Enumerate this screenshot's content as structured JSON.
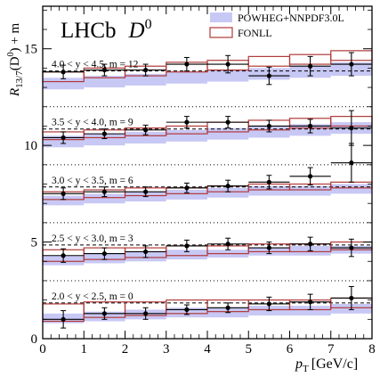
{
  "chart_data": {
    "type": "step",
    "experiment": "LHCb",
    "particle": "D",
    "particle_sup": "0",
    "xlabel": "p",
    "xlabel_sub": "T",
    "xlabel_unit": "[GeV/c]",
    "ylabel": "R",
    "ylabel_sub": "13/7",
    "ylabel_suffix": "(D",
    "ylabel_sup": "0",
    "ylabel_tail": ") + m",
    "xlim": [
      0,
      8
    ],
    "ylim": [
      0,
      17.2
    ],
    "xticks": [
      0,
      1,
      2,
      3,
      4,
      5,
      6,
      7,
      8
    ],
    "yticks": [
      0,
      5,
      10,
      15
    ],
    "legend": {
      "position": "top-right",
      "entries": [
        {
          "label": "POWHEG+NNPDF3.0L",
          "style": "band",
          "color": "#c8c8f5"
        },
        {
          "label": "FONLL",
          "style": "box",
          "color": "#b03a3a"
        }
      ]
    },
    "colors": {
      "data": "#000000",
      "fonll": "#b03a3a",
      "powheg": "#c8c8f5"
    },
    "x_bins": [
      0,
      1,
      2,
      3,
      4,
      5,
      6,
      7,
      8
    ],
    "x_points": [
      0.5,
      1.5,
      2.5,
      3.5,
      4.5,
      5.5,
      6.5,
      7.5
    ],
    "panels": [
      {
        "label": "2.0 < y < 2.5, m = 0",
        "m": 0,
        "ratio_line": 1.85,
        "points": [
          1.0,
          1.3,
          1.3,
          1.5,
          1.6,
          1.8,
          1.9,
          2.1
        ],
        "errors": [
          0.45,
          0.3,
          0.3,
          0.25,
          0.25,
          0.35,
          0.4,
          0.6
        ],
        "xerr": [
          0.5,
          0.5,
          0.5,
          0.5,
          0.5,
          0.5,
          0.5,
          0.5
        ],
        "fonll_lo": [
          0.9,
          1.1,
          1.2,
          1.3,
          1.4,
          1.5,
          1.5,
          1.6
        ],
        "fonll_hi": [
          1.8,
          1.9,
          1.9,
          2.0,
          2.0,
          2.0,
          2.0,
          2.1
        ],
        "powheg_lo": [
          0.8,
          0.9,
          1.0,
          1.1,
          1.1,
          1.2,
          1.2,
          1.3
        ],
        "powheg_hi": [
          1.3,
          1.4,
          1.5,
          1.6,
          1.6,
          1.7,
          1.7,
          1.8
        ]
      },
      {
        "label": "2.5 < y < 3.0, m = 3",
        "m": 3,
        "ratio_line": 4.85,
        "points": [
          4.3,
          4.4,
          4.5,
          4.8,
          4.9,
          4.7,
          4.9,
          4.7
        ],
        "errors": [
          0.35,
          0.3,
          0.3,
          0.3,
          0.3,
          0.3,
          0.35,
          0.45
        ],
        "xerr": [
          0.5,
          0.5,
          0.5,
          0.5,
          0.5,
          0.5,
          0.5,
          0.5
        ],
        "fonll_lo": [
          4.0,
          4.1,
          4.2,
          4.3,
          4.4,
          4.5,
          4.5,
          4.6
        ],
        "fonll_hi": [
          4.6,
          4.7,
          4.7,
          4.8,
          4.8,
          4.9,
          4.9,
          5.0
        ],
        "powheg_lo": [
          3.8,
          3.9,
          4.0,
          4.1,
          4.2,
          4.3,
          4.3,
          4.4
        ],
        "powheg_hi": [
          4.3,
          4.4,
          4.5,
          4.6,
          4.6,
          4.7,
          4.8,
          4.8
        ]
      },
      {
        "label": "3.0 < y < 3.5, m = 6",
        "m": 6,
        "ratio_line": 7.85,
        "points": [
          7.5,
          7.6,
          7.6,
          7.8,
          7.9,
          8.1,
          8.4,
          9.1
        ],
        "errors": [
          0.3,
          0.25,
          0.25,
          0.25,
          0.3,
          0.35,
          0.45,
          1.0
        ],
        "xerr": [
          0.5,
          0.5,
          0.5,
          0.5,
          0.5,
          0.5,
          0.5,
          0.5
        ],
        "fonll_lo": [
          7.2,
          7.3,
          7.4,
          7.5,
          7.6,
          7.7,
          7.7,
          7.8
        ],
        "fonll_hi": [
          7.6,
          7.7,
          7.8,
          7.8,
          7.9,
          8.0,
          8.0,
          8.1
        ],
        "powheg_lo": [
          6.9,
          7.0,
          7.1,
          7.2,
          7.3,
          7.4,
          7.4,
          7.5
        ],
        "powheg_hi": [
          7.4,
          7.5,
          7.6,
          7.7,
          7.8,
          7.9,
          7.9,
          8.0
        ]
      },
      {
        "label": "3.5 < y < 4.0, m = 9",
        "m": 9,
        "ratio_line": 10.85,
        "points": [
          10.4,
          10.6,
          10.8,
          11.2,
          11.2,
          11.0,
          11.0,
          10.9
        ],
        "errors": [
          0.3,
          0.25,
          0.25,
          0.3,
          0.3,
          0.3,
          0.35,
          0.9
        ],
        "xerr": [
          0.5,
          0.5,
          0.5,
          0.5,
          0.5,
          0.5,
          0.5,
          0.5
        ],
        "fonll_lo": [
          10.3,
          10.4,
          10.5,
          10.6,
          10.7,
          10.8,
          10.9,
          11.0
        ],
        "fonll_hi": [
          10.7,
          10.8,
          10.9,
          11.0,
          11.2,
          11.3,
          11.4,
          11.5
        ],
        "powheg_lo": [
          9.9,
          10.0,
          10.1,
          10.2,
          10.3,
          10.4,
          10.5,
          10.6
        ],
        "powheg_hi": [
          10.5,
          10.6,
          10.7,
          10.8,
          10.9,
          11.0,
          11.1,
          11.2
        ]
      },
      {
        "label": "4.0 < y < 4.5, m = 12",
        "m": 12,
        "ratio_line": 13.85,
        "points": [
          13.8,
          13.9,
          13.9,
          14.2,
          14.2,
          13.6,
          14.1,
          14.2
        ],
        "errors": [
          0.35,
          0.3,
          0.3,
          0.35,
          0.45,
          0.45,
          0.5,
          0.6
        ],
        "xerr": [
          0.5,
          0.5,
          0.5,
          0.5,
          0.5,
          0.5,
          0.5,
          0.5
        ],
        "fonll_lo": [
          13.3,
          13.5,
          13.6,
          13.8,
          13.9,
          14.1,
          14.2,
          14.4
        ],
        "fonll_hi": [
          13.8,
          14.0,
          14.1,
          14.3,
          14.4,
          14.6,
          14.7,
          14.9
        ],
        "powheg_lo": [
          12.9,
          13.0,
          13.1,
          13.2,
          13.3,
          13.4,
          13.5,
          13.6
        ],
        "powheg_hi": [
          13.5,
          13.6,
          13.7,
          13.8,
          13.9,
          14.0,
          14.1,
          14.3
        ]
      }
    ]
  }
}
